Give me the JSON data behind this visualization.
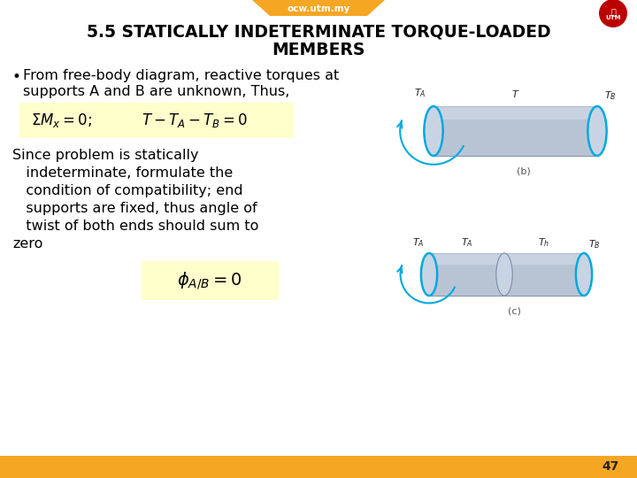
{
  "title_line1": "5.5 STATICALLY INDETERMINATE TORQUE-LOADED",
  "title_line2": "MEMBERS",
  "bullet_line1": "From free-body diagram, reactive torques at",
  "bullet_line2": "supports A and B are unknown, Thus,",
  "body_lines": [
    "Since problem is statically",
    "   indeterminate, formulate the",
    "   condition of compatibility; end",
    "   supports are fixed, thus angle of",
    "   twist of both ends should sum to",
    "zero"
  ],
  "page_number": "47",
  "bg_color": "#ffffff",
  "header_color": "#f5a623",
  "footer_color": "#f5a623",
  "title_color": "#000000",
  "eq_box_color": "#ffffcc",
  "text_color": "#000000",
  "header_text": "ocw.utm.my",
  "header_text_color": "#ffffff",
  "shaft_color": "#b8c4d4",
  "shaft_edge_color": "#8090a8",
  "cap_color": "#c8d4e4",
  "arc_color": "#00aadd"
}
